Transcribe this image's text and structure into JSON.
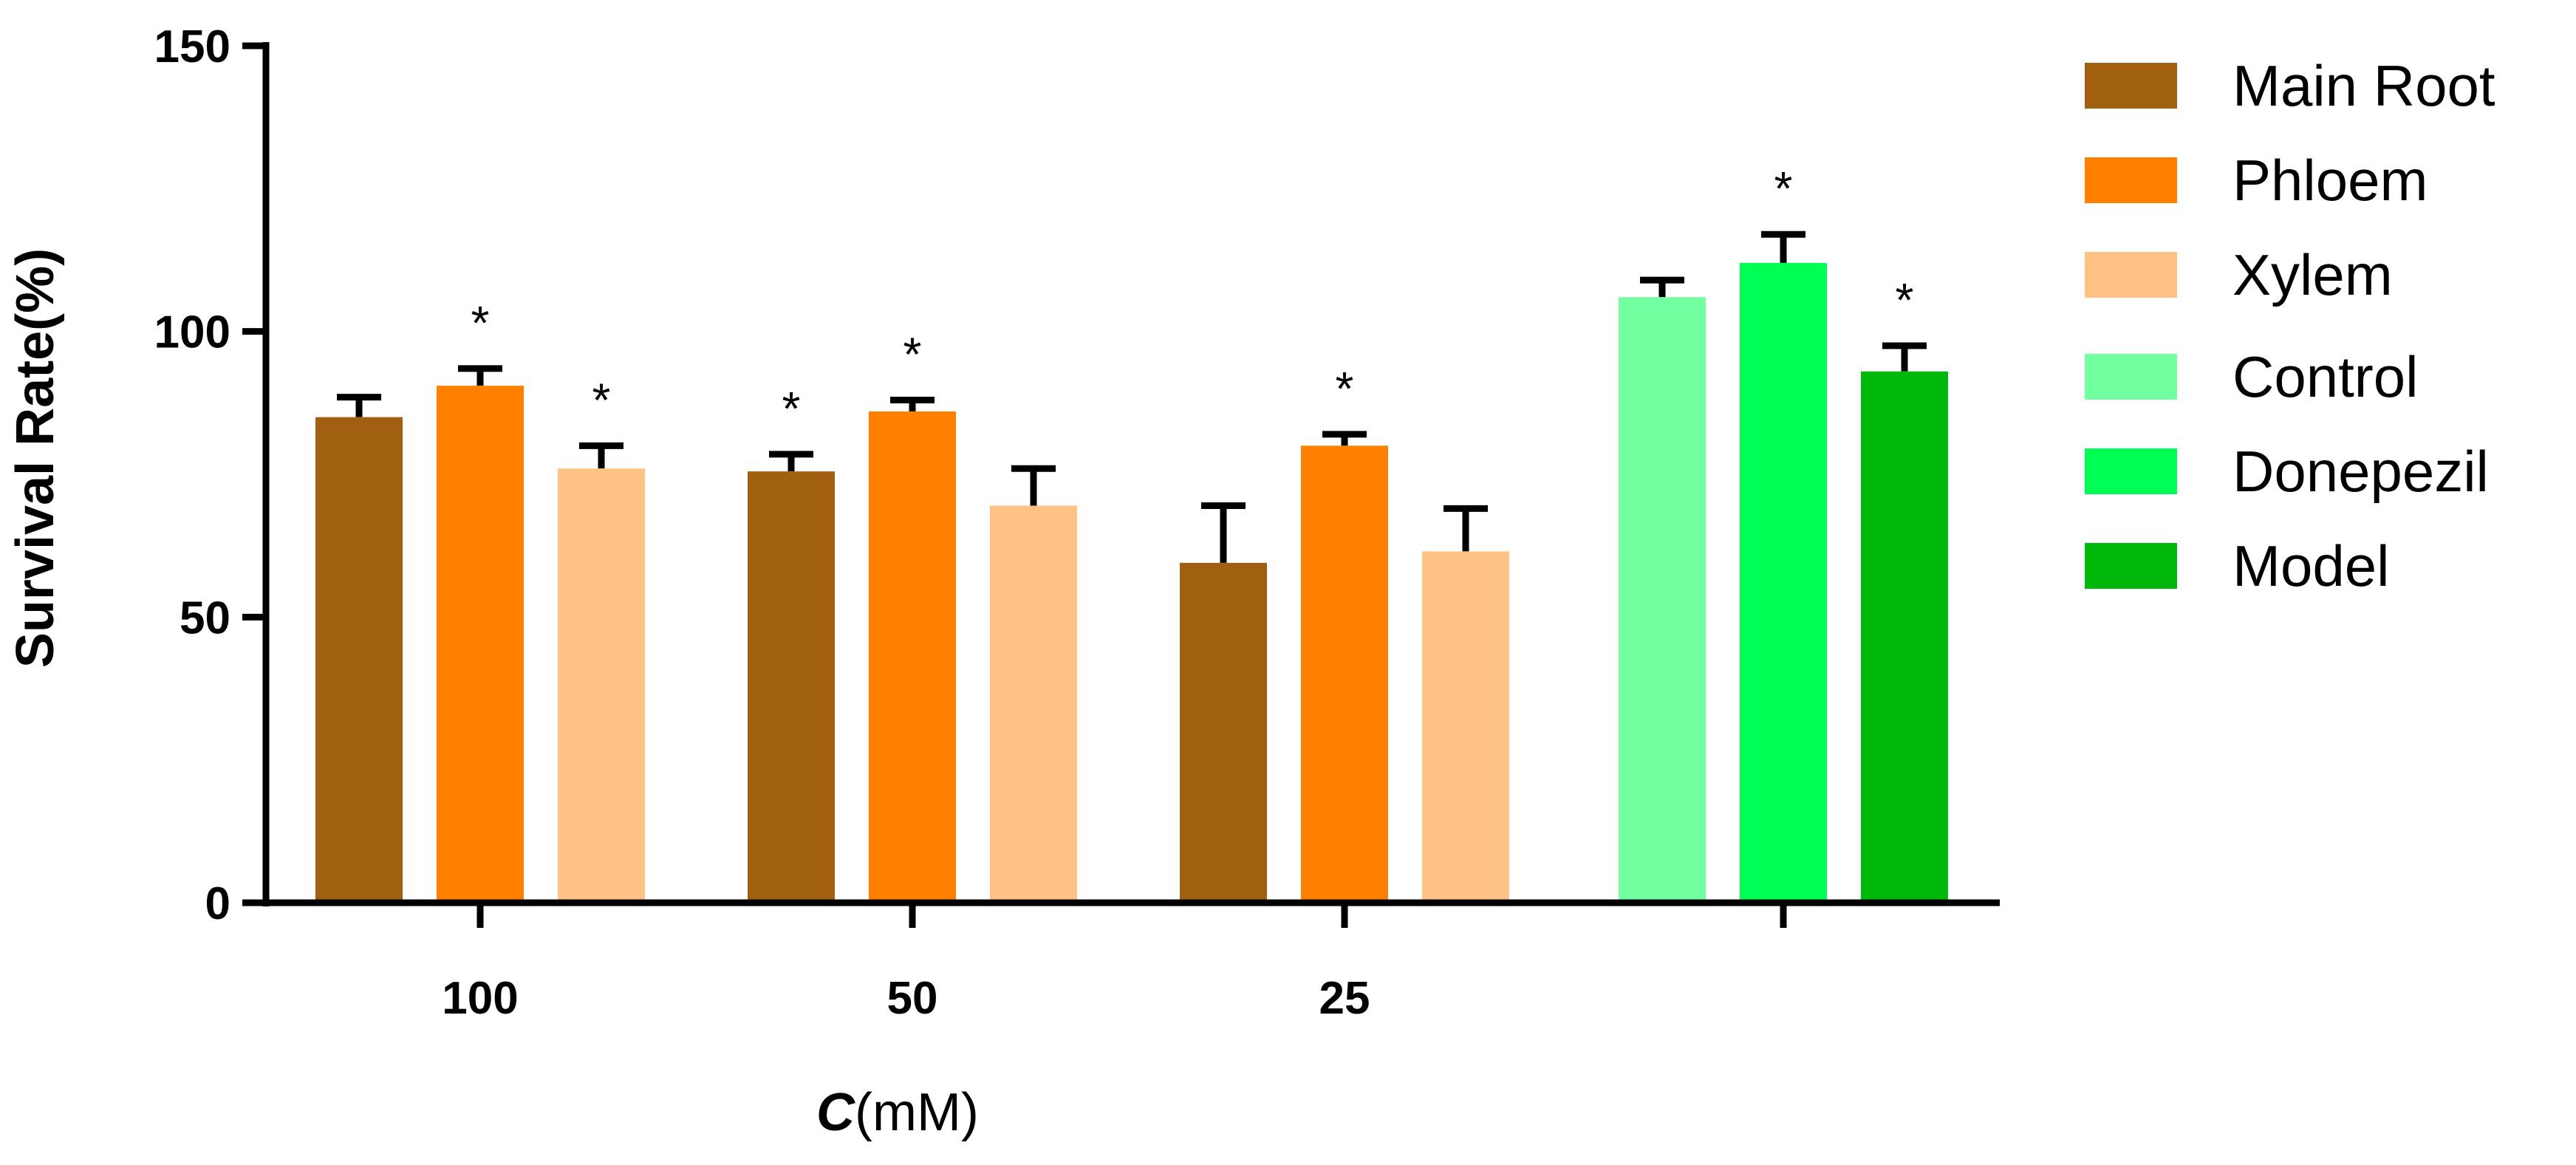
{
  "chart_data": {
    "type": "bar",
    "title": "",
    "ylabel": "Survival Rate(%)",
    "xlabel_main": "C",
    "xlabel_unit": "(mM)",
    "ylim": [
      0,
      150
    ],
    "yticks": [
      0,
      50,
      100,
      150
    ],
    "grid": false,
    "legend_position": "right",
    "groups": [
      {
        "label": "100",
        "bars": [
          {
            "series": "Main Root",
            "value": 85,
            "error": 3.5,
            "star": ""
          },
          {
            "series": "Phloem",
            "value": 90.5,
            "error": 3,
            "star": "*"
          },
          {
            "series": "Xylem",
            "value": 76,
            "error": 4,
            "star": "*"
          }
        ]
      },
      {
        "label": "50",
        "bars": [
          {
            "series": "Main Root",
            "value": 75.5,
            "error": 3,
            "star": "*"
          },
          {
            "series": "Phloem",
            "value": 86,
            "error": 2,
            "star": "*"
          },
          {
            "series": "Xylem",
            "value": 69.5,
            "error": 6.5,
            "star": ""
          }
        ]
      },
      {
        "label": "25",
        "bars": [
          {
            "series": "Main Root",
            "value": 59.5,
            "error": 10,
            "star": ""
          },
          {
            "series": "Phloem",
            "value": 80,
            "error": 2,
            "star": "*"
          },
          {
            "series": "Xylem",
            "value": 61.5,
            "error": 7.5,
            "star": ""
          }
        ]
      },
      {
        "label": "",
        "bars": [
          {
            "series": "Control",
            "value": 106,
            "error": 3,
            "star": ""
          },
          {
            "series": "Donepezil",
            "value": 112,
            "error": 5,
            "star": "*"
          },
          {
            "series": "Model",
            "value": 93,
            "error": 4.5,
            "star": "*"
          }
        ]
      }
    ],
    "legend": [
      {
        "name": "Main Root",
        "color": "#A0600F"
      },
      {
        "name": "Phloem",
        "color": "#FF8000"
      },
      {
        "name": "Xylem",
        "color": "#FFC285"
      },
      {
        "name": "Control",
        "color": "#72FFA0"
      },
      {
        "name": "Donepezil",
        "color": "#00FF55"
      },
      {
        "name": "Model",
        "color": "#00B80A"
      }
    ]
  }
}
